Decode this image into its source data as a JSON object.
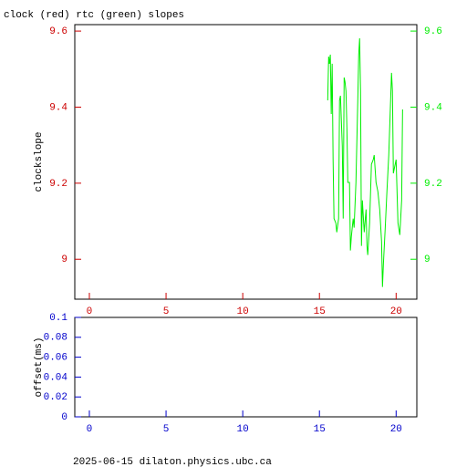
{
  "chart_data": [
    {
      "type": "line",
      "title": "clock (red) rtc (green) slopes",
      "y_label": "clockslope",
      "axis_color": "#cc0000",
      "y2_axis_color": "#00ee00",
      "xlim": [
        -0.95,
        21.35
      ],
      "xticks": [
        0,
        5,
        10,
        15,
        20
      ],
      "ylim": [
        8.895,
        9.617
      ],
      "yticks": [
        9,
        9.2,
        9.4,
        9.6
      ],
      "y2lim": [
        8.895,
        9.617
      ],
      "y2ticks": [
        9,
        9.2,
        9.4,
        9.6
      ],
      "x": [
        15.54,
        15.6,
        15.65,
        15.71,
        15.77,
        15.83,
        15.89,
        15.95,
        16.07,
        16.13,
        16.25,
        16.31,
        16.37,
        16.49,
        16.55,
        16.61,
        16.67,
        16.73,
        16.79,
        16.85,
        16.96,
        17.02,
        17.08,
        17.2,
        17.26,
        17.38,
        17.5,
        17.56,
        17.62,
        17.68,
        17.74,
        17.8,
        17.92,
        18.04,
        18.1,
        18.15,
        18.27,
        18.39,
        18.51,
        18.57,
        18.69,
        18.81,
        18.93,
        19.05,
        19.11,
        19.17,
        19.29,
        19.4,
        19.52,
        19.58,
        19.64,
        19.7,
        19.76,
        19.82,
        19.94,
        20.0,
        20.12,
        20.24,
        20.36,
        20.42
      ],
      "series": [
        {
          "color": "#00ee00",
          "axis": "y2",
          "values": [
            9.418,
            9.533,
            9.514,
            9.538,
            9.382,
            9.514,
            9.262,
            9.107,
            9.095,
            9.071,
            9.107,
            9.418,
            9.43,
            9.298,
            9.107,
            9.478,
            9.466,
            9.442,
            9.346,
            9.202,
            9.202,
            9.023,
            9.059,
            9.107,
            9.083,
            9.202,
            9.418,
            9.538,
            9.581,
            9.442,
            9.035,
            9.155,
            9.071,
            9.131,
            9.035,
            9.011,
            9.095,
            9.25,
            9.262,
            9.274,
            9.202,
            9.178,
            9.131,
            9.047,
            8.927,
            8.987,
            9.083,
            9.178,
            9.274,
            9.346,
            9.418,
            9.49,
            9.442,
            9.226,
            9.25,
            9.262,
            9.095,
            9.064,
            9.155,
            9.394
          ]
        }
      ]
    },
    {
      "type": "line",
      "y_label": "offset(ms)",
      "axis_color": "#0000cc",
      "xlim": [
        -0.95,
        21.35
      ],
      "xticks": [
        0,
        5,
        10,
        15,
        20
      ],
      "ylim": [
        0,
        0.1
      ],
      "yticks": [
        0,
        0.02,
        0.04,
        0.06,
        0.08,
        0.1
      ],
      "series": []
    }
  ],
  "footer": "2025-06-15  dilaton.physics.ubc.ca"
}
